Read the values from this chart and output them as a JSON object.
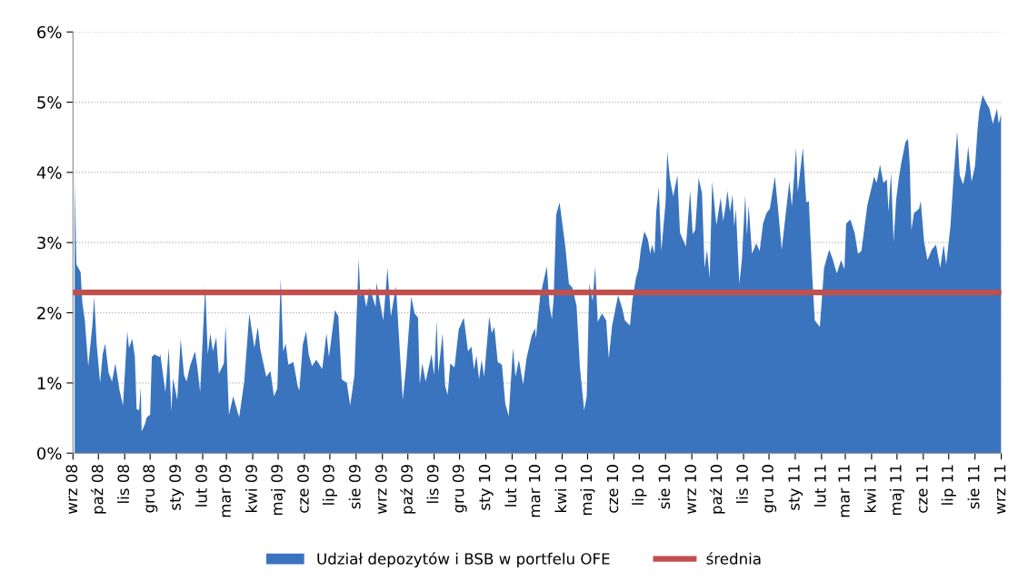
{
  "chart_data": {
    "type": "area",
    "xlim": [
      "2008-09-01",
      "2011-09-01"
    ],
    "xticks": [
      {
        "value": "2008-09-01",
        "label": "wrz 08"
      },
      {
        "value": "2008-10-01",
        "label": "paź 08"
      },
      {
        "value": "2008-11-01",
        "label": "lis 08"
      },
      {
        "value": "2008-12-01",
        "label": "gru 08"
      },
      {
        "value": "2009-01-01",
        "label": "sty 09"
      },
      {
        "value": "2009-02-01",
        "label": "lut 09"
      },
      {
        "value": "2009-03-01",
        "label": "mar 09"
      },
      {
        "value": "2009-04-01",
        "label": "kwi 09"
      },
      {
        "value": "2009-05-01",
        "label": "maj 09"
      },
      {
        "value": "2009-06-01",
        "label": "cze 09"
      },
      {
        "value": "2009-07-01",
        "label": "lip 09"
      },
      {
        "value": "2009-08-01",
        "label": "sie 09"
      },
      {
        "value": "2009-09-01",
        "label": "wrz 09"
      },
      {
        "value": "2009-10-01",
        "label": "paź 09"
      },
      {
        "value": "2009-11-01",
        "label": "lis 09"
      },
      {
        "value": "2009-12-01",
        "label": "gru 09"
      },
      {
        "value": "2010-01-01",
        "label": "sty 10"
      },
      {
        "value": "2010-02-01",
        "label": "lut 10"
      },
      {
        "value": "2010-03-01",
        "label": "mar 10"
      },
      {
        "value": "2010-04-01",
        "label": "kwi 10"
      },
      {
        "value": "2010-05-01",
        "label": "maj 10"
      },
      {
        "value": "2010-06-01",
        "label": "cze 10"
      },
      {
        "value": "2010-07-01",
        "label": "lip 10"
      },
      {
        "value": "2010-08-01",
        "label": "sie 10"
      },
      {
        "value": "2010-09-01",
        "label": "wrz 10"
      },
      {
        "value": "2010-10-01",
        "label": "paź 10"
      },
      {
        "value": "2010-11-01",
        "label": "lis 10"
      },
      {
        "value": "2010-12-01",
        "label": "gru 10"
      },
      {
        "value": "2011-01-01",
        "label": "sty 11"
      },
      {
        "value": "2011-02-01",
        "label": "lut 11"
      },
      {
        "value": "2011-03-01",
        "label": "mar 11"
      },
      {
        "value": "2011-04-01",
        "label": "kwi 11"
      },
      {
        "value": "2011-05-01",
        "label": "maj 11"
      },
      {
        "value": "2011-06-01",
        "label": "cze 11"
      },
      {
        "value": "2011-07-01",
        "label": "lip 11"
      },
      {
        "value": "2011-08-01",
        "label": "sie 11"
      },
      {
        "value": "2011-09-01",
        "label": "wrz 11"
      }
    ],
    "ylim": [
      0,
      6
    ],
    "yticks": [
      {
        "value": 0,
        "label": "0%"
      },
      {
        "value": 1,
        "label": "1%"
      },
      {
        "value": 2,
        "label": "2%"
      },
      {
        "value": 3,
        "label": "3%"
      },
      {
        "value": 4,
        "label": "4%"
      },
      {
        "value": 5,
        "label": "5%"
      },
      {
        "value": 6,
        "label": "6%"
      }
    ],
    "grid": "y",
    "legend": "bottom",
    "series": [
      {
        "name": "Udział depozytów i BSB w portfelu OFE",
        "color": "#3a74bf",
        "x": [
          "2008-09-03",
          "2008-09-05",
          "2008-09-10",
          "2008-09-12",
          "2008-09-15",
          "2008-09-19",
          "2008-09-24",
          "2008-09-26",
          "2008-09-29",
          "2008-10-03",
          "2008-10-06",
          "2008-10-09",
          "2008-10-13",
          "2008-10-17",
          "2008-10-21",
          "2008-10-26",
          "2008-10-30",
          "2008-11-04",
          "2008-11-06",
          "2008-11-10",
          "2008-11-13",
          "2008-11-15",
          "2008-11-18",
          "2008-11-20",
          "2008-11-21",
          "2008-11-25",
          "2008-11-27",
          "2008-12-01",
          "2008-12-03",
          "2008-12-06",
          "2008-12-12",
          "2008-12-13",
          "2008-12-19",
          "2008-12-23",
          "2008-12-26",
          "2008-12-28",
          "2009-01-02",
          "2009-01-06",
          "2009-01-10",
          "2009-01-13",
          "2009-01-17",
          "2009-01-23",
          "2009-01-26",
          "2009-01-29",
          "2009-02-04",
          "2009-02-07",
          "2009-02-10",
          "2009-02-13",
          "2009-02-17",
          "2009-02-20",
          "2009-02-26",
          "2009-02-28",
          "2009-03-04",
          "2009-03-09",
          "2009-03-16",
          "2009-03-22",
          "2009-03-28",
          "2009-04-03",
          "2009-04-07",
          "2009-04-10",
          "2009-04-17",
          "2009-04-22",
          "2009-04-26",
          "2009-04-30",
          "2009-05-04",
          "2009-05-07",
          "2009-05-10",
          "2009-05-13",
          "2009-05-19",
          "2009-05-24",
          "2009-05-26",
          "2009-05-30",
          "2009-06-03",
          "2009-06-06",
          "2009-06-10",
          "2009-06-15",
          "2009-06-22",
          "2009-06-27",
          "2009-06-30",
          "2009-07-07",
          "2009-07-11",
          "2009-07-15",
          "2009-07-21",
          "2009-07-25",
          "2009-07-30",
          "2009-08-04",
          "2009-08-06",
          "2009-08-09",
          "2009-08-13",
          "2009-08-17",
          "2009-08-24",
          "2009-08-25",
          "2009-08-29",
          "2009-09-02",
          "2009-09-07",
          "2009-09-11",
          "2009-09-17",
          "2009-09-25",
          "2009-09-29",
          "2009-10-05",
          "2009-10-09",
          "2009-10-13",
          "2009-10-15",
          "2009-10-18",
          "2009-10-22",
          "2009-10-29",
          "2009-11-01",
          "2009-11-04",
          "2009-11-06",
          "2009-11-11",
          "2009-11-14",
          "2009-11-17",
          "2009-11-20",
          "2009-11-25",
          "2009-11-30",
          "2009-12-06",
          "2009-12-11",
          "2009-12-15",
          "2009-12-18",
          "2009-12-21",
          "2009-12-24",
          "2009-12-27",
          "2009-12-30",
          "2010-01-05",
          "2010-01-08",
          "2010-01-11",
          "2010-01-15",
          "2010-01-20",
          "2010-01-24",
          "2010-01-28",
          "2010-02-02",
          "2010-02-05",
          "2010-02-09",
          "2010-02-14",
          "2010-02-18",
          "2010-02-24",
          "2010-02-28",
          "2010-03-01",
          "2010-03-06",
          "2010-03-10",
          "2010-03-14",
          "2010-03-17",
          "2010-03-20",
          "2010-03-22",
          "2010-03-25",
          "2010-03-29",
          "2010-04-05",
          "2010-04-09",
          "2010-04-13",
          "2010-04-18",
          "2010-04-22",
          "2010-04-27",
          "2010-04-30",
          "2010-05-03",
          "2010-05-07",
          "2010-05-10",
          "2010-05-13",
          "2010-05-18",
          "2010-05-23",
          "2010-05-26",
          "2010-05-30",
          "2010-06-06",
          "2010-06-11",
          "2010-06-14",
          "2010-06-20",
          "2010-06-23",
          "2010-06-27",
          "2010-06-30",
          "2010-07-03",
          "2010-07-07",
          "2010-07-11",
          "2010-07-14",
          "2010-07-16",
          "2010-07-19",
          "2010-07-21",
          "2010-07-24",
          "2010-07-27",
          "2010-08-01",
          "2010-08-03",
          "2010-08-06",
          "2010-08-10",
          "2010-08-15",
          "2010-08-18",
          "2010-08-25",
          "2010-08-30",
          "2010-09-02",
          "2010-09-05",
          "2010-09-09",
          "2010-09-13",
          "2010-09-16",
          "2010-09-19",
          "2010-09-22",
          "2010-09-25",
          "2010-09-30",
          "2010-10-05",
          "2010-10-08",
          "2010-10-11",
          "2010-10-13",
          "2010-10-16",
          "2010-10-19",
          "2010-10-21",
          "2010-10-23",
          "2010-10-27",
          "2010-10-30",
          "2010-11-03",
          "2010-11-05",
          "2010-11-07",
          "2010-11-11",
          "2010-11-16",
          "2010-11-20",
          "2010-11-24",
          "2010-11-28",
          "2010-12-02",
          "2010-12-08",
          "2010-12-12",
          "2010-12-16",
          "2010-12-20",
          "2010-12-25",
          "2010-12-28",
          "2011-01-02",
          "2011-01-04",
          "2011-01-10",
          "2011-01-14",
          "2011-01-17",
          "2011-01-21",
          "2011-01-24",
          "2011-01-30",
          "2011-02-04",
          "2011-02-10",
          "2011-02-14",
          "2011-02-19",
          "2011-02-24",
          "2011-02-28",
          "2011-03-02",
          "2011-03-07",
          "2011-03-12",
          "2011-03-16",
          "2011-03-20",
          "2011-03-27",
          "2011-04-04",
          "2011-04-07",
          "2011-04-11",
          "2011-04-15",
          "2011-04-19",
          "2011-04-21",
          "2011-04-24",
          "2011-04-27",
          "2011-04-30",
          "2011-05-03",
          "2011-05-06",
          "2011-05-11",
          "2011-05-14",
          "2011-05-16",
          "2011-05-18",
          "2011-05-21",
          "2011-05-27",
          "2011-05-29",
          "2011-06-02",
          "2011-06-06",
          "2011-06-11",
          "2011-06-16",
          "2011-06-21",
          "2011-06-25",
          "2011-06-28",
          "2011-07-03",
          "2011-07-07",
          "2011-07-11",
          "2011-07-14",
          "2011-07-18",
          "2011-07-21",
          "2011-07-24",
          "2011-07-28",
          "2011-08-01",
          "2011-08-04",
          "2011-08-06",
          "2011-08-10",
          "2011-08-14",
          "2011-08-18",
          "2011-08-22",
          "2011-08-27",
          "2011-08-29",
          "2011-09-01"
        ],
        "values": [
          3.92,
          2.69,
          2.58,
          2.15,
          1.89,
          1.24,
          1.84,
          2.23,
          1.54,
          1.0,
          1.41,
          1.56,
          1.15,
          1.02,
          1.28,
          0.89,
          0.68,
          1.74,
          1.5,
          1.63,
          1.37,
          0.63,
          0.61,
          0.94,
          0.31,
          0.42,
          0.51,
          0.55,
          1.37,
          1.41,
          1.37,
          1.41,
          0.87,
          1.5,
          0.59,
          1.07,
          0.76,
          1.63,
          1.11,
          1.02,
          1.24,
          1.45,
          1.2,
          0.87,
          2.38,
          1.41,
          1.71,
          1.45,
          1.65,
          1.13,
          1.28,
          1.82,
          0.55,
          0.81,
          0.51,
          1.02,
          1.99,
          1.5,
          1.8,
          1.48,
          1.09,
          1.17,
          0.81,
          0.92,
          2.49,
          1.45,
          1.56,
          1.26,
          1.3,
          0.96,
          0.89,
          1.54,
          1.74,
          1.41,
          1.24,
          1.33,
          1.2,
          1.71,
          1.37,
          2.04,
          1.95,
          1.05,
          1.0,
          0.68,
          1.11,
          2.77,
          2.23,
          2.34,
          2.08,
          2.36,
          2.08,
          2.43,
          2.16,
          1.89,
          2.64,
          1.95,
          2.38,
          0.76,
          1.24,
          2.23,
          1.99,
          1.93,
          0.98,
          1.28,
          1.02,
          1.41,
          1.11,
          1.89,
          1.15,
          1.71,
          0.96,
          0.83,
          1.28,
          1.22,
          1.76,
          1.93,
          1.45,
          1.52,
          1.2,
          1.39,
          1.05,
          1.33,
          1.09,
          1.95,
          1.71,
          1.8,
          1.3,
          1.26,
          0.7,
          0.53,
          1.5,
          1.09,
          1.33,
          0.98,
          1.35,
          1.67,
          1.78,
          1.63,
          2.23,
          2.45,
          2.66,
          2.1,
          1.91,
          2.21,
          3.4,
          3.57,
          2.92,
          2.41,
          2.36,
          2.1,
          1.22,
          0.61,
          0.81,
          2.41,
          2.17,
          2.66,
          1.87,
          1.99,
          1.89,
          1.35,
          1.82,
          2.25,
          2.06,
          1.89,
          1.82,
          2.19,
          2.49,
          2.62,
          2.92,
          3.16,
          3.05,
          2.84,
          2.97,
          2.84,
          3.44,
          3.79,
          2.88,
          3.57,
          4.3,
          3.92,
          3.66,
          3.96,
          3.14,
          2.94,
          3.74,
          3.12,
          3.18,
          3.92,
          3.7,
          2.64,
          2.9,
          2.49,
          3.87,
          3.25,
          3.64,
          3.31,
          3.53,
          3.74,
          3.44,
          3.68,
          3.23,
          3.48,
          2.41,
          2.75,
          3.68,
          3.1,
          3.53,
          2.84,
          2.99,
          2.88,
          3.27,
          3.42,
          3.48,
          3.94,
          3.44,
          2.9,
          3.33,
          3.87,
          3.51,
          4.35,
          3.72,
          4.35,
          3.57,
          3.59,
          2.53,
          1.89,
          1.8,
          2.64,
          2.9,
          2.77,
          2.56,
          2.75,
          2.62,
          3.27,
          3.33,
          3.14,
          2.84,
          2.88,
          3.53,
          3.94,
          3.85,
          4.11,
          3.85,
          3.9,
          3.44,
          4.0,
          3.01,
          3.61,
          3.9,
          4.13,
          4.43,
          4.48,
          4.13,
          3.18,
          3.42,
          3.48,
          3.59,
          3.01,
          2.75,
          2.9,
          2.97,
          2.64,
          2.97,
          2.69,
          3.23,
          3.98,
          4.59,
          3.96,
          3.83,
          4.0,
          4.37,
          3.87,
          4.09,
          4.61,
          4.87,
          5.1,
          5.0,
          4.91,
          4.69,
          4.91,
          4.69,
          4.84
        ]
      },
      {
        "name": "średnia",
        "type": "line",
        "color": "#c0504d",
        "x": [
          "2008-09-01",
          "2011-09-01"
        ],
        "values": [
          2.29,
          2.29
        ]
      }
    ]
  }
}
